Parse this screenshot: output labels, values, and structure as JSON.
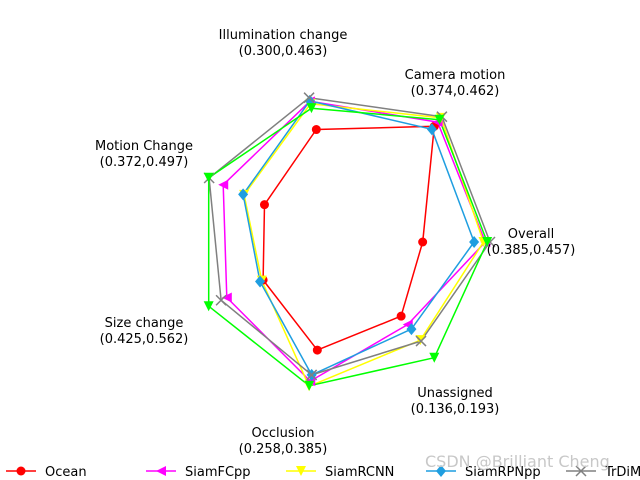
{
  "chart_data": {
    "type": "radar",
    "axes": [
      {
        "name": "Overall",
        "range": "(0.385,0.457)"
      },
      {
        "name": "Camera motion",
        "range": "(0.374,0.462)"
      },
      {
        "name": "Illumination change",
        "range": "(0.300,0.463)"
      },
      {
        "name": "Motion Change",
        "range": "(0.372,0.497)"
      },
      {
        "name": "Size change",
        "range": "(0.425,0.562)"
      },
      {
        "name": "Occlusion",
        "range": "(0.258,0.385)"
      },
      {
        "name": "Unassigned",
        "range": "(0.136,0.193)"
      }
    ],
    "series": [
      {
        "name": "Ocean",
        "color": "#ff0000",
        "marker": "circle",
        "values": [
          0.385,
          0.462,
          0.384,
          0.382,
          0.439,
          0.315,
          0.148
        ]
      },
      {
        "name": "SiamFCpp",
        "color": "#ff00ff",
        "marker": "triangle-left",
        "values": [
          0.452,
          0.469,
          0.454,
          0.467,
          0.521,
          0.375,
          0.157
        ]
      },
      {
        "name": "SiamRCNN",
        "color": "#ffff00",
        "marker": "triangle-down",
        "values": [
          0.45,
          0.476,
          0.448,
          0.424,
          0.442,
          0.385,
          0.174
        ]
      },
      {
        "name": "SiamRPNpp",
        "color": "#1f9ee0",
        "marker": "diamond",
        "values": [
          0.44,
          0.457,
          0.455,
          0.426,
          0.446,
          0.363,
          0.162
        ]
      },
      {
        "name": "TrDiMP",
        "color": "#808080",
        "marker": "x",
        "values": [
          0.457,
          0.478,
          0.463,
          0.496,
          0.534,
          0.363,
          0.175
        ]
      },
      {
        "name": "",
        "color": "#00ff00",
        "marker": "triangle-down",
        "values": [
          0.454,
          0.473,
          0.437,
          0.497,
          0.562,
          0.384,
          0.193
        ]
      }
    ],
    "legend_position": "bottom",
    "grid": false
  },
  "watermark": "CSDN @Brilliant Cheng"
}
